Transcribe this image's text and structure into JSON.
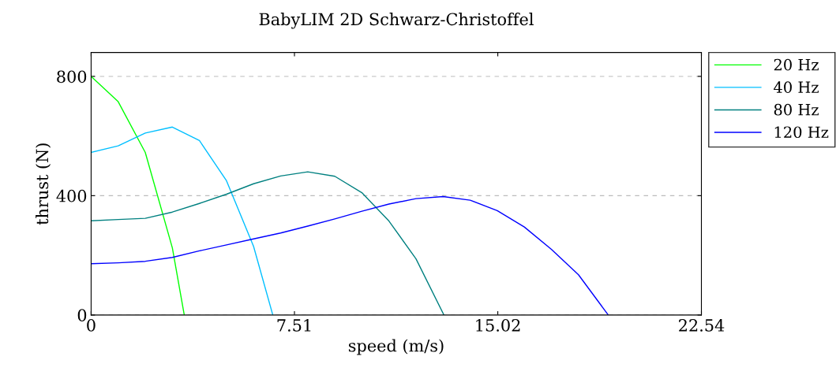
{
  "chart_data": {
    "type": "line",
    "title": "BabyLIM 2D Schwarz-Christoffel",
    "xlabel": "speed (m/s)",
    "ylabel": "thrust (N)",
    "series": [
      {
        "name": "20 Hz",
        "color": "#00ff00",
        "x": [
          0,
          1,
          2,
          3,
          3.44
        ],
        "values": [
          800,
          715,
          545,
          225,
          0
        ]
      },
      {
        "name": "40 Hz",
        "color": "#00bfff",
        "x": [
          0,
          1,
          2,
          3,
          4,
          5,
          6,
          6.71
        ],
        "values": [
          545,
          567,
          610,
          630,
          585,
          450,
          230,
          0
        ]
      },
      {
        "name": "80 Hz",
        "color": "#008080",
        "x": [
          0,
          1,
          2,
          3,
          4,
          5,
          6,
          7,
          8,
          9,
          10,
          11,
          12,
          13.03
        ],
        "values": [
          316,
          320,
          324,
          345,
          374,
          405,
          440,
          466,
          480,
          465,
          410,
          315,
          188,
          0
        ]
      },
      {
        "name": "120 Hz",
        "color": "#0000ff",
        "x": [
          0,
          1,
          2,
          3,
          4,
          5,
          6,
          7,
          8,
          9,
          10,
          11,
          12,
          13,
          14,
          15,
          16,
          17,
          18,
          19.1
        ],
        "values": [
          172,
          175,
          180,
          193,
          215,
          235,
          255,
          275,
          298,
          322,
          348,
          372,
          390,
          397,
          385,
          350,
          295,
          220,
          135,
          0
        ]
      }
    ],
    "xlim": [
      0,
      22.54
    ],
    "xticks": [
      0,
      7.51,
      15.02,
      22.54
    ],
    "ylim": [
      0,
      880
    ],
    "yticks": [
      0,
      400,
      800
    ],
    "grid": "y",
    "legend": "top right",
    "marker": "none",
    "line_style": "solid"
  }
}
